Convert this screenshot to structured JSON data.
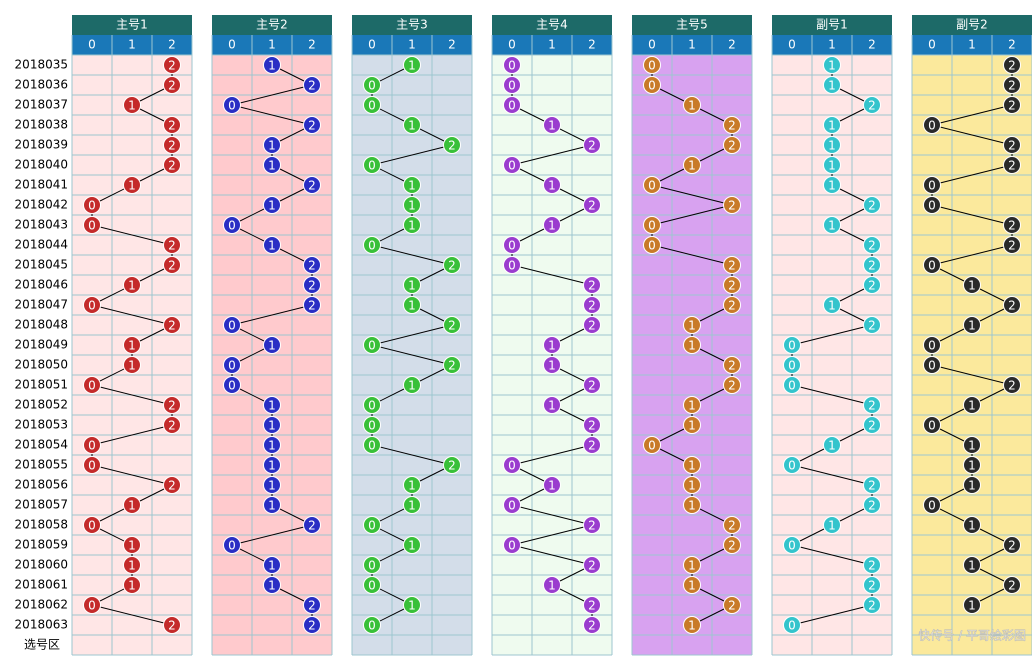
{
  "trend": {
    "columns": [
      "0",
      "1",
      "2"
    ],
    "periods": [
      "2018035",
      "2018036",
      "2018037",
      "2018038",
      "2018039",
      "2018040",
      "2018041",
      "2018042",
      "2018043",
      "2018044",
      "2018045",
      "2018046",
      "2018047",
      "2018048",
      "2018049",
      "2018050",
      "2018051",
      "2018052",
      "2018053",
      "2018054",
      "2018055",
      "2018056",
      "2018057",
      "2018058",
      "2018059",
      "2018060",
      "2018061",
      "2018062",
      "2018063"
    ],
    "footer": "选号区",
    "groups": [
      {
        "name": "主号1",
        "color": "#c42a2a",
        "background": "#ffe6e6",
        "values": [
          2,
          2,
          1,
          2,
          2,
          2,
          1,
          0,
          0,
          2,
          2,
          1,
          0,
          2,
          1,
          1,
          0,
          2,
          2,
          0,
          0,
          2,
          1,
          0,
          1,
          1,
          1,
          0,
          2
        ]
      },
      {
        "name": "主号2",
        "color": "#2a2ec4",
        "background": "#ffcacd",
        "values": [
          1,
          2,
          0,
          2,
          1,
          1,
          2,
          1,
          0,
          1,
          2,
          2,
          2,
          0,
          1,
          0,
          0,
          1,
          1,
          1,
          1,
          1,
          1,
          2,
          0,
          1,
          1,
          2,
          2
        ]
      },
      {
        "name": "主号3",
        "color": "#38c038",
        "background": "#d3dde9",
        "values": [
          1,
          0,
          0,
          1,
          2,
          0,
          1,
          1,
          1,
          0,
          2,
          1,
          1,
          2,
          0,
          2,
          1,
          0,
          0,
          0,
          2,
          1,
          1,
          0,
          1,
          0,
          0,
          1,
          0
        ]
      },
      {
        "name": "主号4",
        "color": "#9a3cce",
        "background": "#effbef",
        "values": [
          0,
          0,
          0,
          1,
          2,
          0,
          1,
          2,
          1,
          0,
          0,
          2,
          2,
          2,
          1,
          1,
          2,
          1,
          2,
          2,
          0,
          1,
          0,
          2,
          0,
          2,
          1,
          2,
          2
        ]
      },
      {
        "name": "主号5",
        "color": "#c87a28",
        "background": "#d8a2f0",
        "values": [
          0,
          0,
          1,
          2,
          2,
          1,
          0,
          2,
          0,
          0,
          2,
          2,
          2,
          1,
          1,
          2,
          2,
          1,
          1,
          0,
          1,
          1,
          1,
          2,
          2,
          1,
          1,
          2,
          1
        ]
      },
      {
        "name": "副号1",
        "color": "#34c4cc",
        "background": "#ffe6e6",
        "values": [
          1,
          1,
          2,
          1,
          1,
          1,
          1,
          2,
          1,
          2,
          2,
          2,
          1,
          2,
          0,
          0,
          0,
          2,
          2,
          1,
          0,
          2,
          2,
          1,
          0,
          2,
          2,
          2,
          0
        ]
      },
      {
        "name": "副号2",
        "color": "#2a2a2a",
        "background": "#fbe99c",
        "values": [
          2,
          2,
          2,
          0,
          2,
          2,
          0,
          0,
          2,
          2,
          0,
          1,
          2,
          1,
          0,
          0,
          2,
          1,
          0,
          1,
          1,
          1,
          0,
          1,
          2,
          1,
          2,
          1,
          null
        ]
      }
    ],
    "watermark": "快传号 / 平哥绘彩图"
  }
}
